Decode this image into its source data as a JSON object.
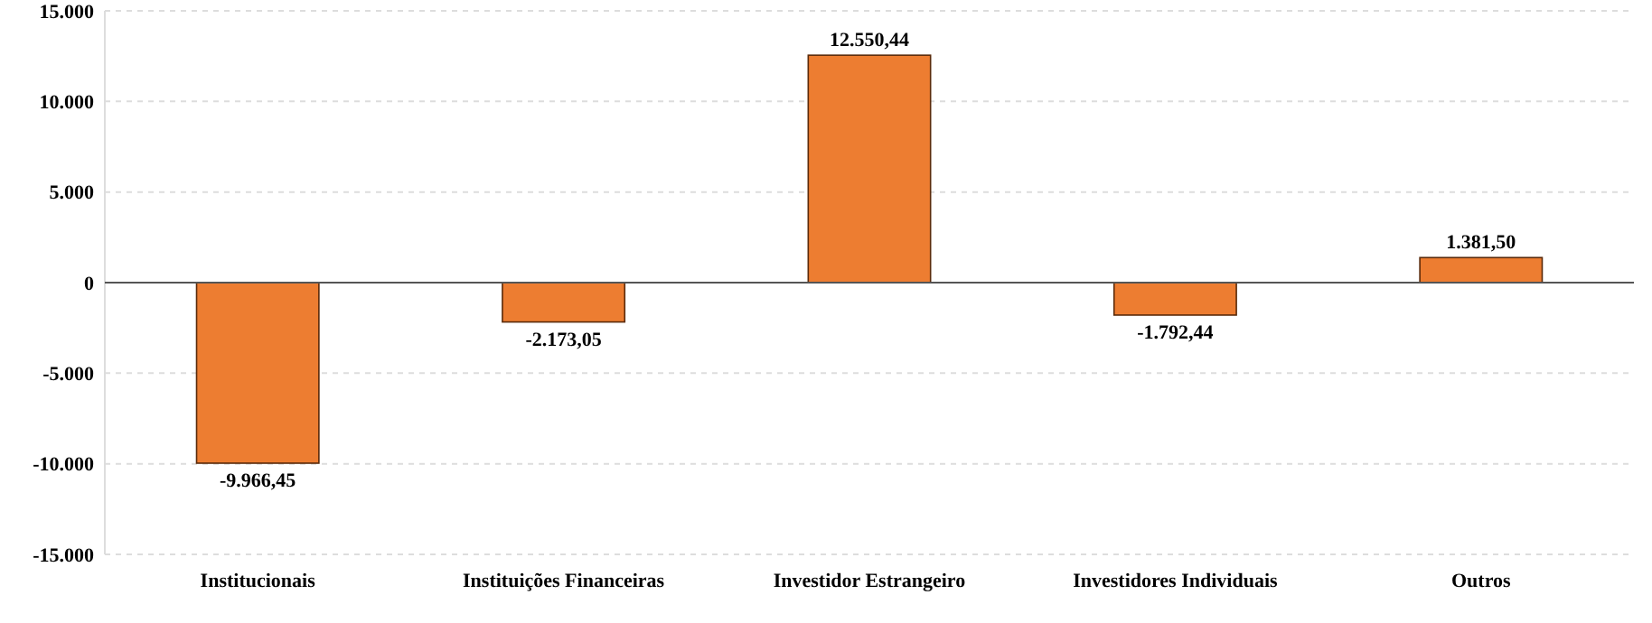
{
  "chart_data": {
    "type": "bar",
    "categories": [
      "Institucionais",
      "Instituições Financeiras",
      "Investidor Estrangeiro",
      "Investidores Individuais",
      "Outros"
    ],
    "values": [
      -9966.45,
      -2173.05,
      12550.44,
      -1792.44,
      1381.5
    ],
    "value_labels": [
      "-9.966,45",
      "-2.173,05",
      "12.550,44",
      "-1.792,44",
      "1.381,50"
    ],
    "color": "#ed7d31",
    "ylim": [
      -15000,
      15000
    ],
    "yticks": [
      {
        "value": -15000,
        "label": "-15.000"
      },
      {
        "value": -10000,
        "label": "-10.000"
      },
      {
        "value": -5000,
        "label": "-5.000"
      },
      {
        "value": 0,
        "label": "0"
      },
      {
        "value": 5000,
        "label": "5.000"
      },
      {
        "value": 10000,
        "label": "10.000"
      },
      {
        "value": 15000,
        "label": "15.000"
      }
    ],
    "grid": "y"
  }
}
